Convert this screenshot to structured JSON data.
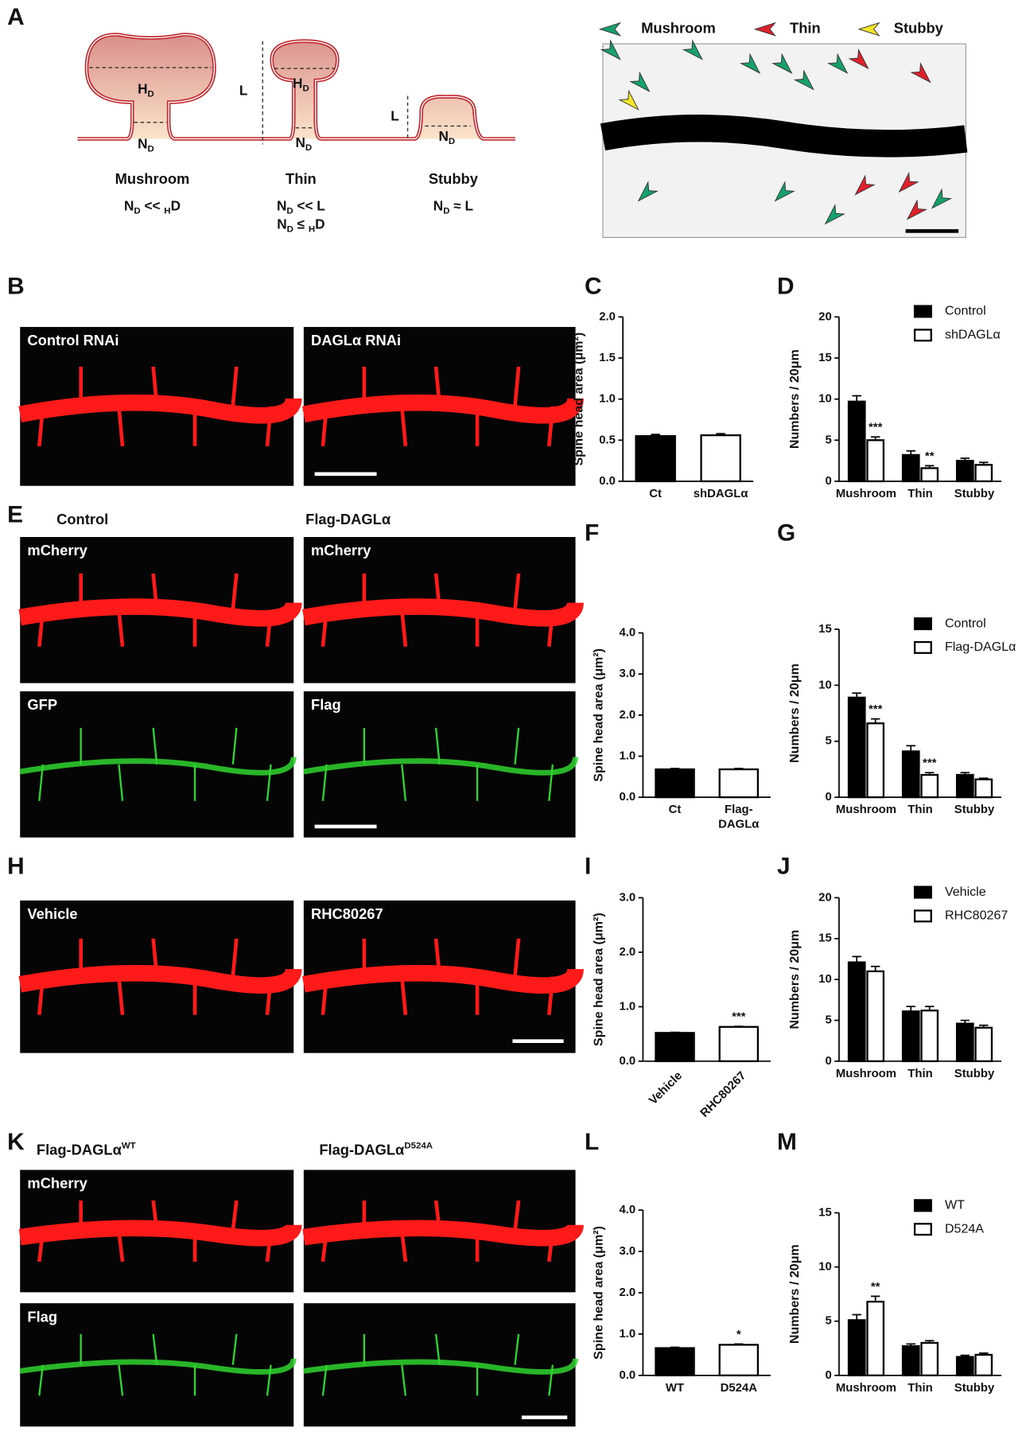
{
  "panel_letters": [
    "A",
    "B",
    "C",
    "D",
    "E",
    "F",
    "G",
    "H",
    "I",
    "J",
    "K",
    "L",
    "M"
  ],
  "diagram": {
    "measures": {
      "HD": [
        "H",
        "D"
      ],
      "ND": [
        "N",
        "D"
      ],
      "L": "L"
    },
    "types": [
      {
        "name": "Mushroom",
        "rules": [
          [
            "N",
            "D",
            " << ",
            "H",
            "D"
          ]
        ]
      },
      {
        "name": "Thin",
        "rules": [
          [
            "N",
            "D",
            " << L"
          ],
          [
            "N",
            "D",
            " ≤ ",
            "H",
            "D"
          ]
        ]
      },
      {
        "name": "Stubby",
        "rules": [
          [
            "N",
            "D",
            " ≈ L"
          ]
        ]
      }
    ]
  },
  "image_legend": [
    {
      "name": "Mushroom",
      "color": "#17a06a"
    },
    {
      "name": "Thin",
      "color": "#e0202a"
    },
    {
      "name": "Stubby",
      "color": "#f2e52a"
    }
  ],
  "image_labels": [
    "Control RNAi",
    "DAGLα RNAi",
    "Control",
    "Flag-DAGLα",
    "mCherry",
    "mCherry",
    "GFP",
    "Flag",
    "Vehicle",
    "RHC80267",
    {
      "text": "Flag-DAGLα",
      "sup": "WT"
    },
    {
      "text": "Flag-DAGLα",
      "sup": "D524A"
    },
    "mCherry",
    "Flag"
  ],
  "chart_data": [
    {
      "type": "bar",
      "ylabel": "Spine head area (μm²)",
      "categories": [
        "Ct",
        "shDAGLα"
      ],
      "series": [
        {
          "values": [
            0.55,
            0.56
          ],
          "errors": [
            0.02,
            0.02
          ],
          "colors": [
            "#000000",
            "#ffffff"
          ],
          "sig": [
            null,
            null
          ]
        }
      ],
      "ylim": [
        0,
        2
      ],
      "yticks": [
        {
          "value": 0,
          "label": "0.0"
        },
        {
          "value": 0.5,
          "label": "0.5"
        },
        {
          "value": 1,
          "label": "1.0"
        },
        {
          "value": 1.5,
          "label": "1.5"
        },
        {
          "value": 2,
          "label": "2.0"
        }
      ]
    },
    {
      "type": "bar",
      "ylabel": "Numbers / 20μm",
      "categories": [
        "Mushroom",
        "Thin",
        "Stubby"
      ],
      "series": [
        {
          "name": "Control",
          "color": "#000000",
          "values": [
            9.7,
            3.2,
            2.5
          ],
          "errors": [
            0.7,
            0.5,
            0.3
          ],
          "sig": [
            null,
            null,
            null
          ]
        },
        {
          "name": "shDAGLα",
          "color": "#ffffff",
          "values": [
            5.0,
            1.6,
            2.0
          ],
          "errors": [
            0.4,
            0.3,
            0.3
          ],
          "sig": [
            "***",
            "**",
            null
          ]
        }
      ],
      "ylim": [
        0,
        20
      ],
      "yticks": [
        0,
        5,
        10,
        15,
        20
      ]
    },
    {
      "type": "bar",
      "ylabel": "Spine head area (μm²)",
      "categories": [
        "Ct",
        "Flag-DAGLα"
      ],
      "wrap_labels": true,
      "series": [
        {
          "values": [
            0.68,
            0.68
          ],
          "errors": [
            0.02,
            0.02
          ],
          "colors": [
            "#000000",
            "#ffffff"
          ],
          "sig": [
            null,
            null
          ]
        }
      ],
      "ylim": [
        0,
        4
      ],
      "yticks": [
        {
          "value": 0,
          "label": "0.0"
        },
        {
          "value": 1,
          "label": "1.0"
        },
        {
          "value": 2,
          "label": "2.0"
        },
        {
          "value": 3,
          "label": "3.0"
        },
        {
          "value": 4,
          "label": "4.0"
        }
      ]
    },
    {
      "type": "bar",
      "ylabel": "Numbers / 20μm",
      "categories": [
        "Mushroom",
        "Thin",
        "Stubby"
      ],
      "series": [
        {
          "name": "Control",
          "color": "#000000",
          "values": [
            8.9,
            4.1,
            2.0
          ],
          "errors": [
            0.4,
            0.5,
            0.2
          ],
          "sig": [
            null,
            null,
            null
          ]
        },
        {
          "name": "Flag-DAGLα",
          "color": "#ffffff",
          "values": [
            6.6,
            2.0,
            1.6
          ],
          "errors": [
            0.4,
            0.2,
            0.1
          ],
          "sig": [
            "***",
            "***",
            null
          ]
        }
      ],
      "ylim": [
        0,
        15
      ],
      "yticks": [
        0,
        5,
        10,
        15
      ]
    },
    {
      "type": "bar",
      "ylabel": "Spine head area (μm²)",
      "categories": [
        "Vehicle",
        "RHC80267"
      ],
      "xtick_rotation": -45,
      "series": [
        {
          "values": [
            0.52,
            0.63
          ],
          "errors": [
            0.01,
            0.01
          ],
          "colors": [
            "#000000",
            "#ffffff"
          ],
          "sig": [
            null,
            "***"
          ]
        }
      ],
      "ylim": [
        0,
        3
      ],
      "yticks": [
        {
          "value": 0,
          "label": "0.0"
        },
        {
          "value": 1,
          "label": "1.0"
        },
        {
          "value": 2,
          "label": "2.0"
        },
        {
          "value": 3,
          "label": "3.0"
        }
      ]
    },
    {
      "type": "bar",
      "ylabel": "Numbers / 20μm",
      "categories": [
        "Mushroom",
        "Thin",
        "Stubby"
      ],
      "series": [
        {
          "name": "Vehicle",
          "color": "#000000",
          "values": [
            12.1,
            6.1,
            4.6
          ],
          "errors": [
            0.7,
            0.6,
            0.4
          ],
          "sig": [
            null,
            null,
            null
          ]
        },
        {
          "name": "RHC80267",
          "color": "#ffffff",
          "values": [
            11.0,
            6.2,
            4.1
          ],
          "errors": [
            0.6,
            0.5,
            0.3
          ],
          "sig": [
            null,
            null,
            null
          ]
        }
      ],
      "ylim": [
        0,
        20
      ],
      "yticks": [
        0,
        5,
        10,
        15,
        20
      ]
    },
    {
      "type": "bar",
      "ylabel": "Spine head area (μm²)",
      "categories": [
        "WT",
        "D524A"
      ],
      "series": [
        {
          "values": [
            0.66,
            0.74
          ],
          "errors": [
            0.02,
            0.02
          ],
          "colors": [
            "#000000",
            "#ffffff"
          ],
          "sig": [
            null,
            "*"
          ]
        }
      ],
      "ylim": [
        0,
        4
      ],
      "yticks": [
        {
          "value": 0,
          "label": "0.0"
        },
        {
          "value": 1,
          "label": "1.0"
        },
        {
          "value": 2,
          "label": "2.0"
        },
        {
          "value": 3,
          "label": "3.0"
        },
        {
          "value": 4,
          "label": "4.0"
        }
      ]
    },
    {
      "type": "bar",
      "ylabel": "Numbers / 20μm",
      "categories": [
        "Mushroom",
        "Thin",
        "Stubby"
      ],
      "series": [
        {
          "name": "WT",
          "color": "#000000",
          "values": [
            5.1,
            2.7,
            1.7
          ],
          "errors": [
            0.5,
            0.2,
            0.15
          ],
          "sig": [
            null,
            null,
            null
          ]
        },
        {
          "name": "D524A",
          "color": "#ffffff",
          "values": [
            6.8,
            3.0,
            1.9
          ],
          "errors": [
            0.5,
            0.2,
            0.15
          ],
          "sig": [
            "**",
            null,
            null
          ]
        }
      ],
      "ylim": [
        0,
        15
      ],
      "yticks": [
        0,
        5,
        10,
        15
      ]
    }
  ]
}
